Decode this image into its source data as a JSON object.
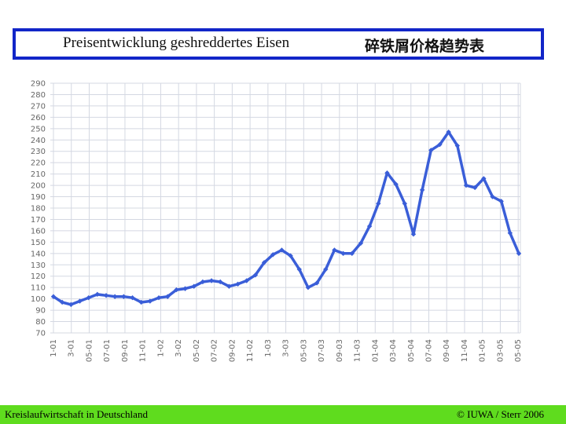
{
  "header": {
    "title_de": "Preisentwicklung geshreddertes Eisen",
    "title_cn": "碎铁屑价格趋势表"
  },
  "footer": {
    "left": "Kreislaufwirtschaft in Deutschland",
    "right": "© IUWA / Sterr 2006"
  },
  "colors": {
    "line": "#3a5ed8",
    "grid": "#d4d8e2",
    "title_border": "#1226c8",
    "footer_bg": "#5fdc1e"
  },
  "chart_data": {
    "type": "line",
    "title": "",
    "xlabel": "",
    "ylabel": "",
    "ylim": [
      70,
      290
    ],
    "ytick_step": 10,
    "grid": true,
    "x_tick_labels": [
      "1-01",
      "3-01",
      "05-01",
      "07-01",
      "09-01",
      "11-01",
      "1-02",
      "3-02",
      "05-02",
      "07-02",
      "09-02",
      "11-02",
      "1-03",
      "3-03",
      "05-03",
      "07-03",
      "09-03",
      "11-03",
      "01-04",
      "03-04",
      "05-04",
      "07-04",
      "09-04",
      "11-04",
      "01-05",
      "03-05",
      "05-05"
    ],
    "series": [
      {
        "values": [
          102,
          97,
          95,
          98,
          101,
          104,
          103,
          102,
          102,
          101,
          97,
          98,
          101,
          102,
          108,
          109,
          111,
          115,
          116,
          115,
          111,
          113,
          116,
          121,
          132,
          139,
          143,
          138,
          126,
          110,
          114,
          126,
          143,
          140,
          140,
          149,
          164,
          184,
          211,
          201,
          184,
          157,
          196,
          231,
          236,
          247,
          235,
          200,
          198,
          206,
          190,
          186,
          158,
          140
        ],
        "n_points": 54
      }
    ]
  }
}
